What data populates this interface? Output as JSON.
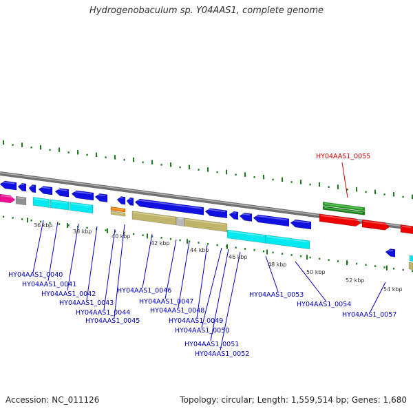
{
  "title": "Hydrogenobaculum sp. Y04AAS1, complete genome",
  "footer": {
    "accession": "Accession: NC_011126",
    "summary": "Topology: circular; Length: 1,559,514 bp; Genes: 1,680"
  },
  "colors": {
    "backbone": "#808080",
    "label_default": "#0000c0",
    "label_selected": "#cc0000",
    "tick": "#1e7a1e",
    "blue": "#1010e0",
    "cyan": "#00e8f0",
    "olive": "#c0b468",
    "green": "#20a020",
    "red": "#ee0000",
    "magenta": "#ee1090",
    "orange": "#f08000",
    "gray": "#909090"
  },
  "kbp_labels": [
    "36 kbp",
    "38 kbp",
    "40 kbp",
    "42 kbp",
    "44 kbp",
    "46 kbp",
    "48 kbp",
    "50 kbp",
    "52 kbp",
    "54 kbp"
  ],
  "gene_labels": [
    {
      "text": "HY04AAS1_0040",
      "color": "blue"
    },
    {
      "text": "HY04AAS1_0041",
      "color": "blue"
    },
    {
      "text": "HY04AAS1_0042",
      "color": "blue"
    },
    {
      "text": "HY04AAS1_0043",
      "color": "blue"
    },
    {
      "text": "HY04AAS1_0044",
      "color": "blue"
    },
    {
      "text": "HY04AAS1_0045",
      "color": "blue"
    },
    {
      "text": "HY04AAS1_0046",
      "color": "blue"
    },
    {
      "text": "HY04AAS1_0047",
      "color": "blue"
    },
    {
      "text": "HY04AAS1_0048",
      "color": "blue"
    },
    {
      "text": "HY04AAS1_0049",
      "color": "blue"
    },
    {
      "text": "HY04AAS1_0050",
      "color": "blue"
    },
    {
      "text": "HY04AAS1_0051",
      "color": "blue"
    },
    {
      "text": "HY04AAS1_0052",
      "color": "blue"
    },
    {
      "text": "HY04AAS1_0053",
      "color": "blue"
    },
    {
      "text": "HY04AAS1_0054",
      "color": "blue"
    },
    {
      "text": "HY04AAS1_0057",
      "color": "blue"
    },
    {
      "text": "HY04AAS1_0055",
      "color": "red"
    }
  ]
}
